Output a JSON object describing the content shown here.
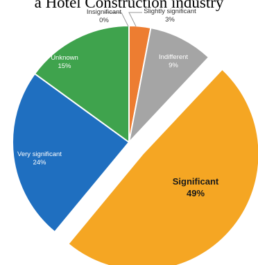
{
  "chart_data": {
    "type": "pie",
    "title": "a Hotel Construction industry",
    "slices": [
      {
        "label": "Insignificant",
        "value": 0,
        "pct_label": "0%",
        "color": "#4472C4"
      },
      {
        "label": "Slightly significant",
        "value": 3,
        "pct_label": "3%",
        "color": "#ED7D31"
      },
      {
        "label": "Indifferent",
        "value": 9,
        "pct_label": "9%",
        "color": "#A5A5A5"
      },
      {
        "label": "Significant",
        "value": 49,
        "pct_label": "49%",
        "color": "#F5A623",
        "exploded": true
      },
      {
        "label": "Very significant",
        "value": 24,
        "pct_label": "24%",
        "color": "#1F6FC0"
      },
      {
        "label": "Unknown",
        "value": 15,
        "pct_label": "15%",
        "color": "#3FA34D"
      }
    ],
    "legend": "none",
    "data_labels": "category-and-percent"
  }
}
